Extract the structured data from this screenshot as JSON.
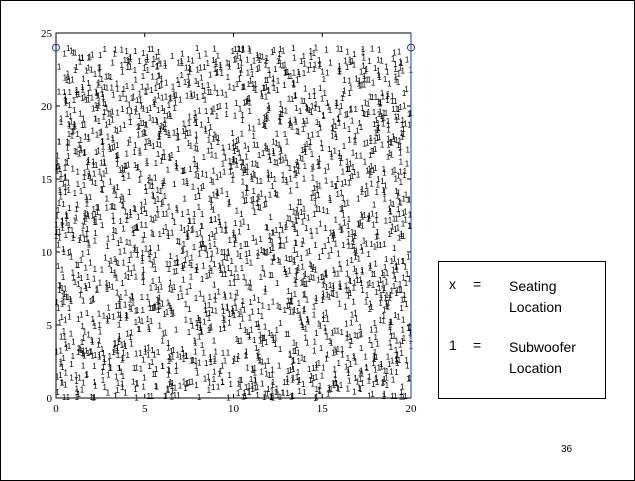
{
  "chart_data": {
    "type": "scatter",
    "title": "",
    "xlabel": "",
    "ylabel": "",
    "xlim": [
      0,
      20
    ],
    "ylim": [
      0,
      25
    ],
    "xticks": [
      "0",
      "5",
      "10",
      "15",
      "20"
    ],
    "yticks": [
      "0",
      "5",
      "10",
      "15",
      "20",
      "25"
    ],
    "grid": false,
    "series": [
      {
        "name": "Subwoofer Location",
        "marker": "1",
        "color": "#000000",
        "x_range": [
          0,
          20
        ],
        "y_range": [
          0,
          24
        ],
        "approx_count": 2600
      },
      {
        "name": "Seating Location",
        "marker": "o",
        "color": "#1f3aa8",
        "points": [
          {
            "x": 0,
            "y": 24
          },
          {
            "x": 20,
            "y": 24
          }
        ]
      }
    ]
  },
  "legend": {
    "entries": [
      {
        "symbol": "x",
        "eq": "=",
        "lines": [
          "Seating",
          "Location"
        ]
      },
      {
        "symbol": "1",
        "eq": "=",
        "lines": [
          "Subwoofer",
          "Location"
        ]
      }
    ]
  },
  "page_number": "36"
}
